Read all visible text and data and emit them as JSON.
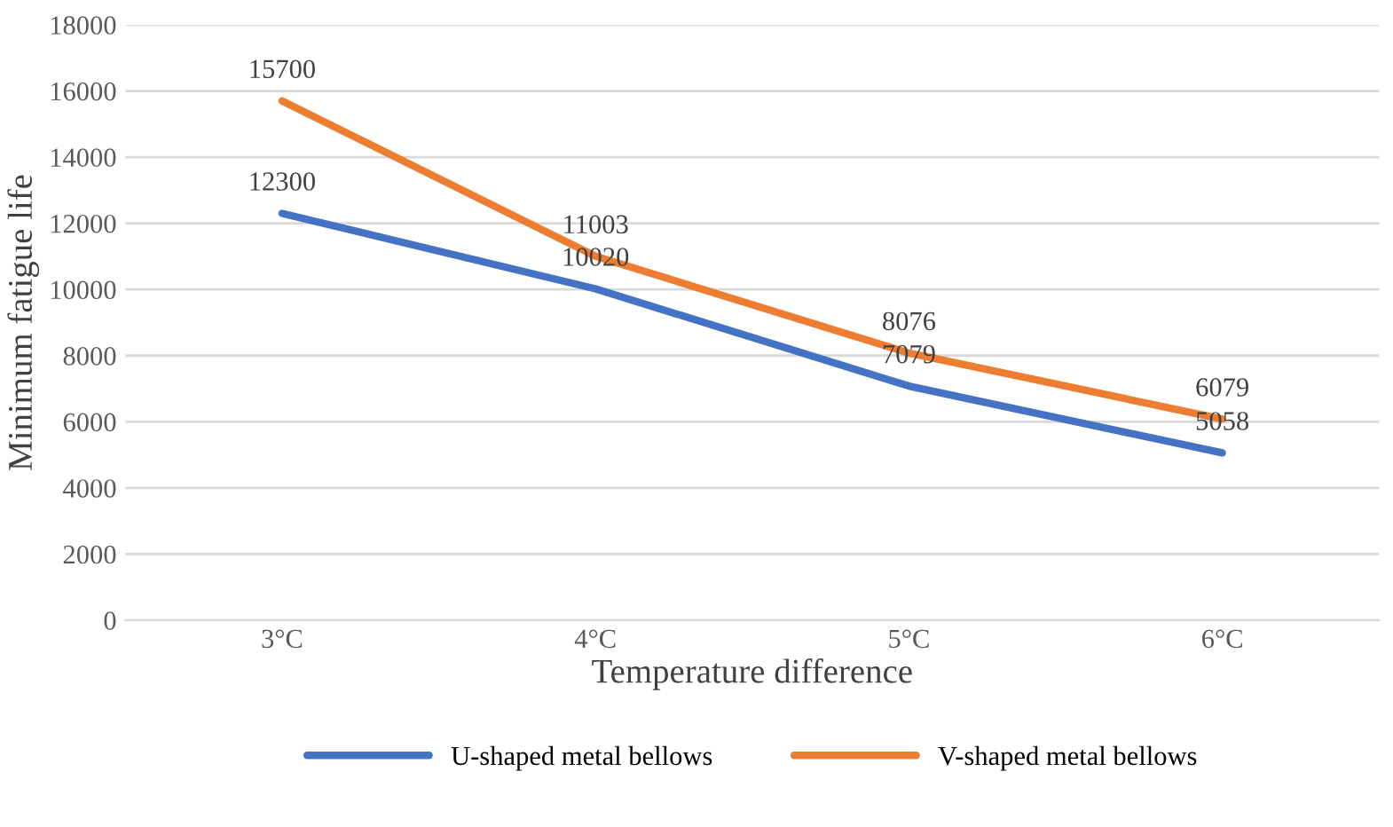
{
  "chart_data": {
    "type": "line",
    "xlabel": "Temperature difference",
    "ylabel": "Minimum fatigue life",
    "categories": [
      "3°C",
      "4°C",
      "5°C",
      "6°C"
    ],
    "series": [
      {
        "name": "U-shaped metal bellows",
        "color": "#4472c4",
        "values": [
          12300,
          10020,
          7079,
          5058
        ]
      },
      {
        "name": "V-shaped metal bellows",
        "color": "#ed7d31",
        "values": [
          15700,
          11003,
          8076,
          6079
        ]
      }
    ],
    "ylim": [
      0,
      18000
    ],
    "yticks": [
      0,
      2000,
      4000,
      6000,
      8000,
      10000,
      12000,
      14000,
      16000,
      18000
    ],
    "grid": "y",
    "legend": "bottom",
    "data_labels": true,
    "marker": "none",
    "line_style": "solid"
  }
}
